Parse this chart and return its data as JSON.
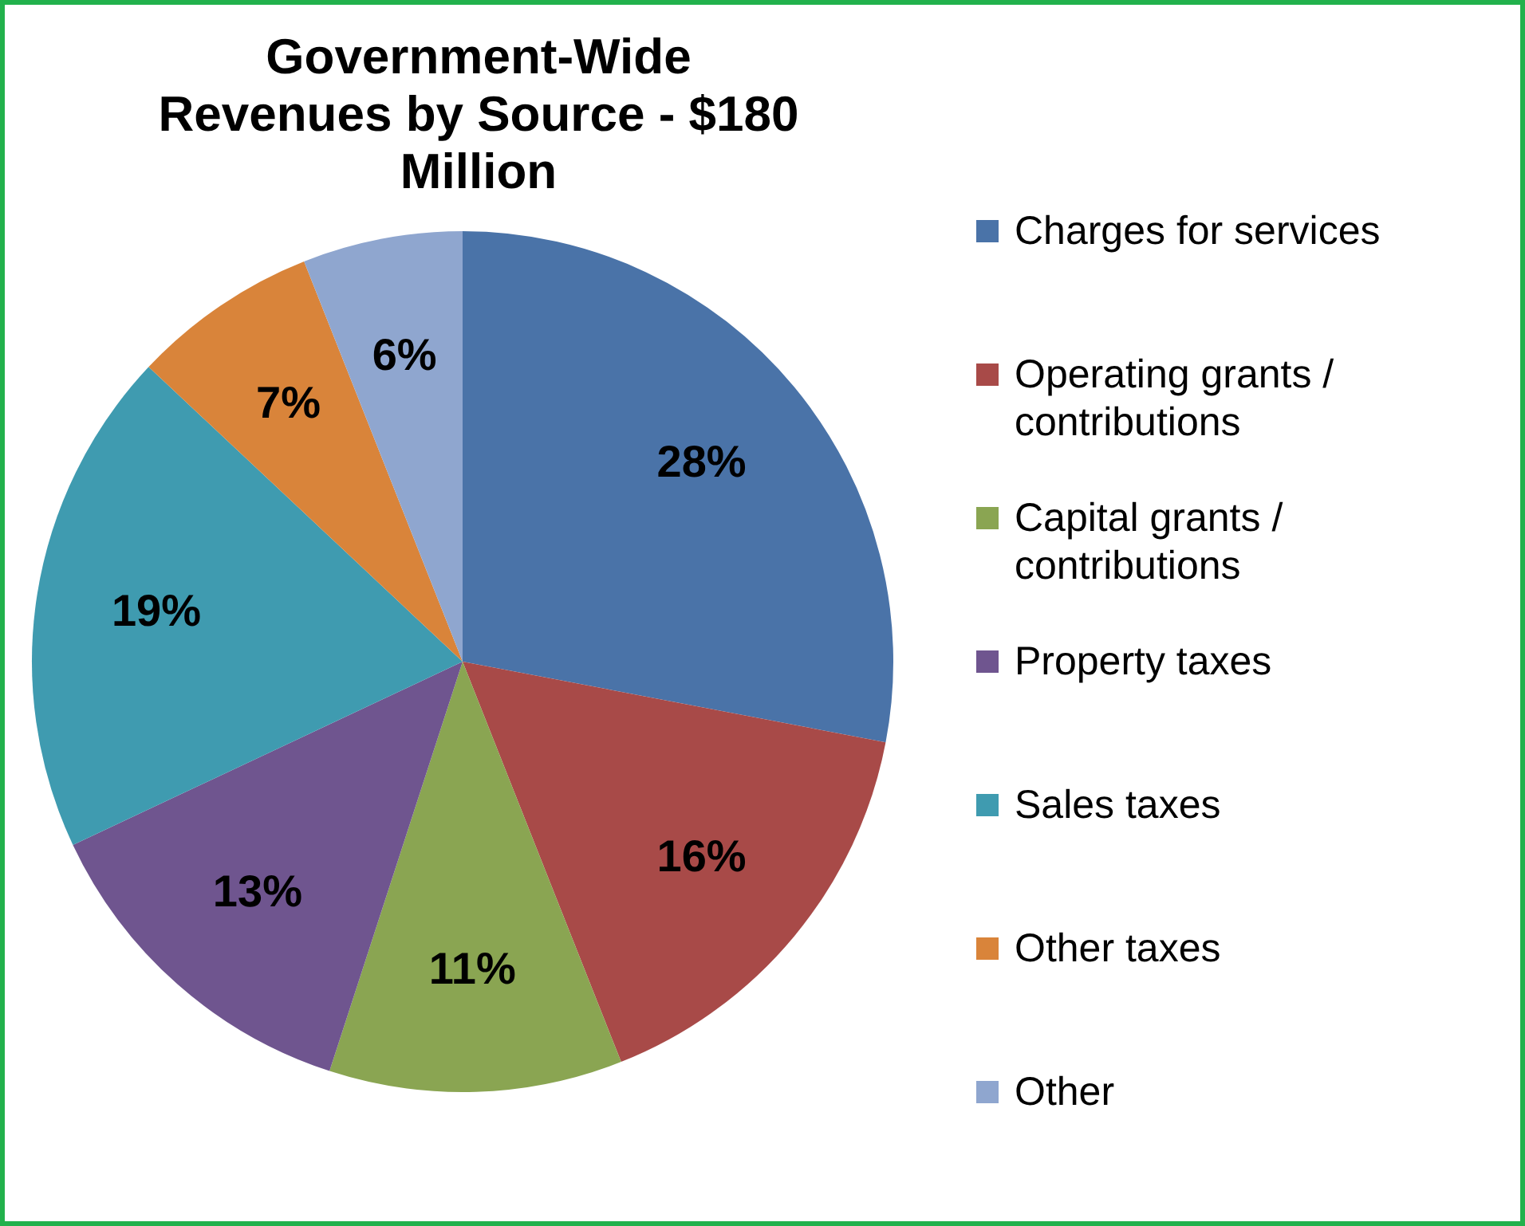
{
  "chart_data": {
    "type": "pie",
    "title": "Government-Wide Revenues by Source - $180 Million",
    "categories": [
      "Charges for services",
      "Operating grants / contributions",
      "Capital grants / contributions",
      "Property taxes",
      "Sales taxes",
      "Other taxes",
      "Other"
    ],
    "values": [
      28,
      16,
      11,
      13,
      19,
      7,
      6
    ],
    "value_labels": [
      "28%",
      "16%",
      "11%",
      "13%",
      "19%",
      "7%",
      "6%"
    ],
    "colors": [
      "#4a73a8",
      "#a84a48",
      "#8aa552",
      "#6f558f",
      "#3f9bb0",
      "#d9843a",
      "#8fa6cf"
    ],
    "legend": "right"
  }
}
